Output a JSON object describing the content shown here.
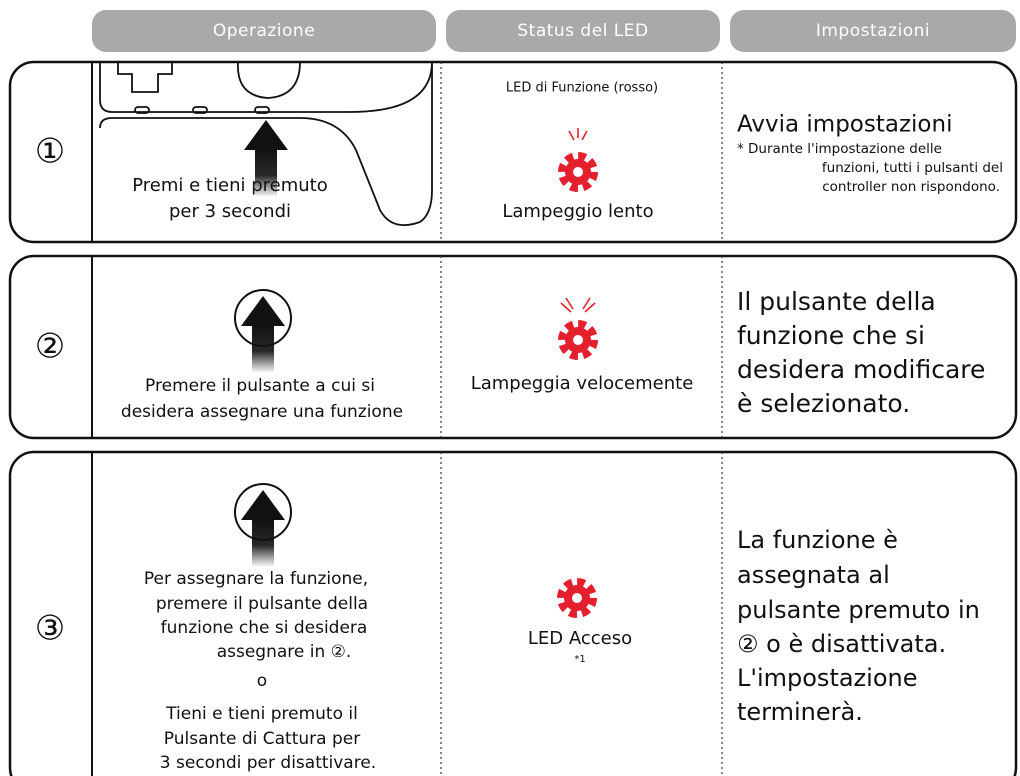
{
  "header": {
    "columns": [
      "Operazione",
      "Status del LED",
      "Impostazioni"
    ]
  },
  "steps": [
    {
      "number": "①",
      "operation": [
        "Premi e tieni premuto",
        "per 3 secondi"
      ],
      "led_label": "LED di Funzione (rosso)",
      "led_status": "Lampeggio lento",
      "setting_title": "Avvia impostazioni",
      "setting_note": [
        "* Durante l'impostazione delle",
        "funzioni, tutti i pulsanti del",
        "controller non rispondono."
      ]
    },
    {
      "number": "②",
      "operation": [
        "Premere il pulsante a cui si",
        "desidera assegnare una funzione"
      ],
      "led_status": "Lampeggia velocemente",
      "setting": [
        "Il pulsante della",
        "funzione che si",
        "desidera modificare",
        "è selezionato."
      ]
    },
    {
      "number": "③",
      "operation": [
        "Per assegnare la funzione,",
        "premere il pulsante della",
        "funzione che si desidera",
        "assegnare in ②."
      ],
      "or": "o",
      "operation_alt": [
        "Tieni e tieni premuto il",
        "Pulsante di Cattura per",
        "3 secondi per disattivare."
      ],
      "led_status": "LED Acceso",
      "led_note": "*1",
      "setting": [
        "La funzione è",
        "assegnata al",
        "pulsante premuto in",
        "② o è disattivata.",
        "L'impostazione",
        "terminerà."
      ]
    }
  ]
}
